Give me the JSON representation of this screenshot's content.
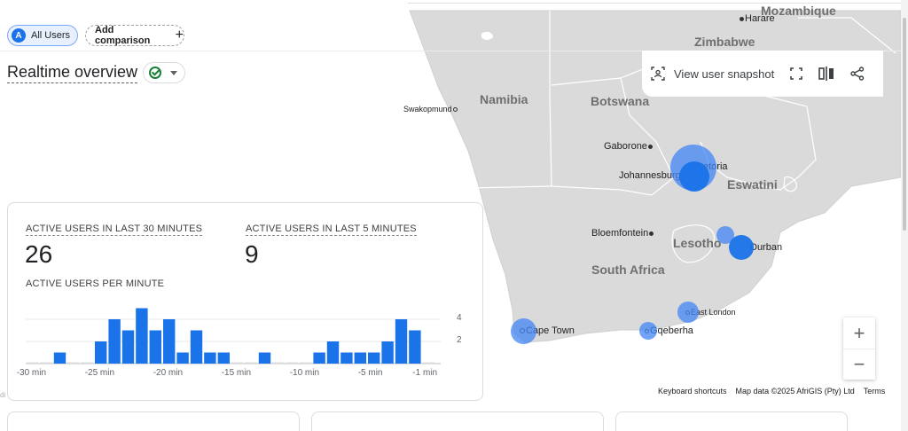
{
  "segments": {
    "all_users": {
      "avatar": "A",
      "label": "All Users"
    },
    "add_comparison": {
      "label": "Add comparison",
      "icon": "plus-icon"
    }
  },
  "page": {
    "title": "Realtime overview",
    "status_icon": "check-circle-icon",
    "accent": "#1a73e8",
    "status_color": "#188038"
  },
  "toolbar": {
    "snapshot_label": "View user snapshot",
    "icons": [
      "user-snapshot-icon",
      "fullscreen-icon",
      "compare-icon",
      "share-icon"
    ]
  },
  "metrics": {
    "active_30": {
      "label": "ACTIVE USERS IN LAST 30 MINUTES",
      "value": "26"
    },
    "active_5": {
      "label": "ACTIVE USERS IN LAST 5 MINUTES",
      "value": "9"
    },
    "per_minute_label": "ACTIVE USERS PER MINUTE"
  },
  "chart_data": {
    "type": "bar",
    "title": "ACTIVE USERS PER MINUTE",
    "x": [
      -30,
      -29,
      -28,
      -27,
      -26,
      -25,
      -24,
      -23,
      -22,
      -21,
      -20,
      -19,
      -18,
      -17,
      -16,
      -15,
      -14,
      -13,
      -12,
      -11,
      -10,
      -9,
      -8,
      -7,
      -6,
      -5,
      -4,
      -3,
      -2,
      -1
    ],
    "values": [
      0,
      0,
      1,
      0,
      0,
      2,
      4,
      3,
      5,
      3,
      4,
      1,
      3,
      1,
      1,
      0,
      0,
      1,
      0,
      0,
      0,
      1,
      2,
      1,
      1,
      1,
      2,
      4,
      3,
      0
    ],
    "xtick_labels": [
      "-30 min",
      "-25 min",
      "-20 min",
      "-15 min",
      "-10 min",
      "-5 min",
      "-1 min"
    ],
    "xtick_values": [
      -30,
      -25,
      -20,
      -15,
      -10,
      -5,
      -1
    ],
    "yticks": [
      2,
      4
    ],
    "ylim": [
      0,
      4.8
    ],
    "grid": true,
    "color": "#1a73e8"
  },
  "map": {
    "countries": [
      "Mozambique",
      "Zimbabwe",
      "Namibia",
      "Botswana",
      "Eswatini",
      "Lesotho",
      "South Africa"
    ],
    "cities": [
      "Harare",
      "Swakopmund",
      "Gaborone",
      "Pretoria",
      "Johannesburg",
      "Bloemfontein",
      "Durban",
      "East London",
      "Cape Town",
      "Gqeberha"
    ],
    "footer": {
      "shortcuts": "Keyboard shortcuts",
      "data": "Map data ©2025 AfriGIS (Pty) Ltd",
      "terms": "Terms"
    },
    "zoom_in": "+",
    "zoom_out": "−",
    "land_color": "#dadada",
    "bubble_color": "#4285f4"
  }
}
